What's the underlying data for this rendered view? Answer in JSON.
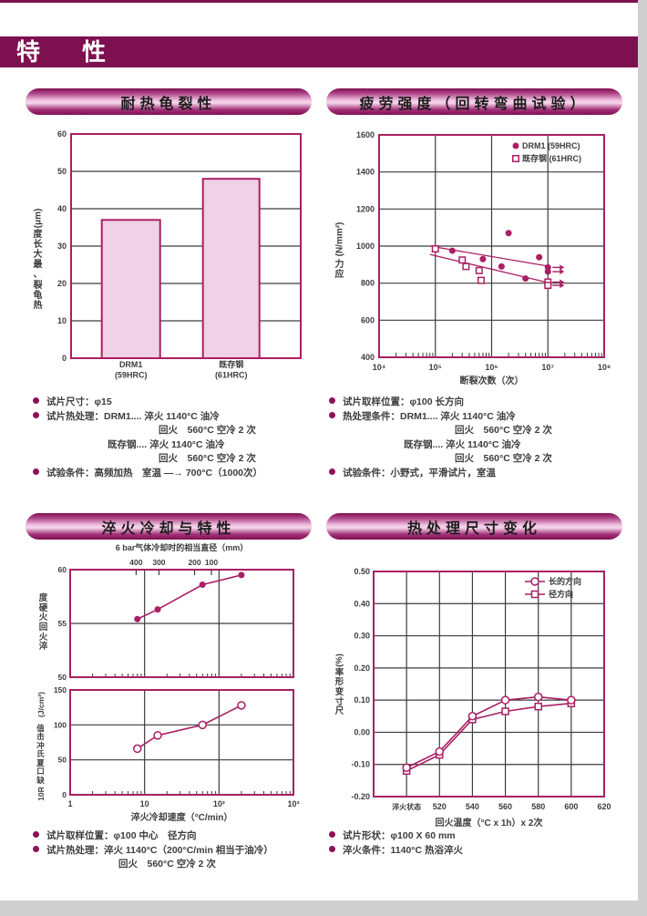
{
  "page_title": "特　性",
  "colors": {
    "header_bar": "#7d1150",
    "accent_line": "#aa1f63",
    "bar_fill": "#efd2e5",
    "grid": "#3c3c3c",
    "text": "#3d3d3d",
    "bullet": "#8d1156",
    "pill_highlight": "#f6d8ec"
  },
  "panels": [
    {
      "title": "耐热龟裂性",
      "notes": [
        {
          "bullet": true,
          "indent": 0,
          "text": "试片尺寸：φ15"
        },
        {
          "bullet": true,
          "indent": 0,
          "text": "试片热处理：DRM1.... 淬火 1140°C 油冷"
        },
        {
          "bullet": false,
          "indent": 123,
          "text": "回火　560°C 空冷 2 次"
        },
        {
          "bullet": false,
          "indent": 67,
          "text": "既存钢.... 淬火 1140°C 油冷"
        },
        {
          "bullet": false,
          "indent": 123,
          "text": "回火　560°C 空冷 2 次"
        },
        {
          "bullet": true,
          "indent": 0,
          "text": "试验条件：高频加热　室温 —→ 700°C（1000次）"
        }
      ]
    },
    {
      "title": "疲劳强度（回转弯曲试验）",
      "notes": [
        {
          "bullet": true,
          "indent": 0,
          "text": "试片取样位置：φ100 长方向"
        },
        {
          "bullet": true,
          "indent": 0,
          "text": "热处理条件：DRM1.... 淬火 1140°C 油冷"
        },
        {
          "bullet": false,
          "indent": 123,
          "text": "回火　560°C 空冷 2 次"
        },
        {
          "bullet": false,
          "indent": 67,
          "text": "既存钢.... 淬火 1140°C 油冷"
        },
        {
          "bullet": false,
          "indent": 123,
          "text": "回火　560°C 空冷 2 次"
        },
        {
          "bullet": true,
          "indent": 0,
          "text": "试验条件：小野式，平滑试片，室温"
        }
      ]
    },
    {
      "title": "淬火冷却与特性",
      "notes": [
        {
          "bullet": true,
          "indent": 0,
          "text": "试片取样位置：φ100 中心　径方向"
        },
        {
          "bullet": true,
          "indent": 0,
          "text": "试片热处理：淬火 1140°C（200°C/min 相当于油冷）"
        },
        {
          "bullet": false,
          "indent": 79,
          "text": "回火　560°C 空冷 2 次"
        }
      ]
    },
    {
      "title": "热处理尺寸变化",
      "notes": [
        {
          "bullet": true,
          "indent": 0,
          "text": "试片形状：φ100 X 60 mm"
        },
        {
          "bullet": true,
          "indent": 0,
          "text": "淬火条件：1140°C 热浴淬火"
        }
      ]
    }
  ],
  "chart_data": [
    {
      "type": "bar",
      "title": "耐热龟裂性",
      "categories": [
        "DRM1\n(59HRC)",
        "既存钢\n(61HRC)"
      ],
      "values": [
        37,
        48
      ],
      "ylabel": "热龟裂、最大长度(μm)",
      "ylim": [
        0,
        60
      ],
      "ytick_step": 10,
      "grid": true
    },
    {
      "type": "scatter",
      "title": "疲劳强度（回转弯曲试验）",
      "xlabel": "断裂次数（次）",
      "ylabel": "应力(N/mm²)",
      "xscale": "log",
      "xlim": [
        10000,
        100000000
      ],
      "xticks": [
        "10⁴",
        "10⁵",
        "10⁶",
        "10⁷",
        "10⁸"
      ],
      "ylim": [
        400,
        1600
      ],
      "ytick_step": 200,
      "legend_position": "top-right",
      "series": [
        {
          "name": "DRM1 (59HRC)",
          "marker": "filled-circle",
          "points": [
            [
              200000.0,
              975
            ],
            [
              700000.0,
              930
            ],
            [
              1500000.0,
              890
            ],
            [
              2000000.0,
              1070
            ],
            [
              4000000.0,
              825
            ],
            [
              7000000.0,
              940
            ]
          ],
          "runouts": [
            [
              10000000.0,
              885
            ],
            [
              10000000.0,
              862
            ]
          ]
        },
        {
          "name": "既存钢 (61HRC)",
          "marker": "open-square",
          "points": [
            [
              100000.0,
              985
            ],
            [
              300000.0,
              925
            ],
            [
              350000.0,
              890
            ],
            [
              600000.0,
              868
            ],
            [
              650000.0,
              815
            ]
          ],
          "runouts": [
            [
              10000000.0,
              806
            ],
            [
              10000000.0,
              788
            ]
          ]
        }
      ],
      "trend_lines": [
        [
          80000.0,
          1000,
          11000000.0,
          890
        ],
        [
          80000.0,
          955,
          11000000.0,
          800
        ]
      ]
    },
    {
      "type": "line-dual",
      "title": "淬火冷却与特性",
      "top_axis_label": "6 bar气体冷却时的相当直径（mm）",
      "top_axis_ticks": [
        {
          "label": "400",
          "rate": 7.7
        },
        {
          "label": "300",
          "rate": 15.6
        },
        {
          "label": "200",
          "rate": 47
        },
        {
          "label": "100",
          "rate": 79
        }
      ],
      "xlabel": "淬火冷却速度（°C/min）",
      "xscale": "log",
      "xlim": [
        1,
        1000
      ],
      "xticks": [
        "1",
        "10",
        "10²",
        "10³"
      ],
      "subplots": [
        {
          "ylabel": "淬火回火硬度",
          "ylim": [
            50,
            60
          ],
          "yticks": [
            50,
            55,
            60
          ],
          "marker": "filled-circle",
          "points": [
            [
              8,
              55.4
            ],
            [
              15,
              56.3
            ],
            [
              60,
              58.6
            ],
            [
              200,
              59.5
            ]
          ]
        },
        {
          "ylabel": "10R缺口夏氏冲击值(J/cm²)",
          "ylim": [
            0,
            150
          ],
          "yticks": [
            0,
            50,
            100,
            150
          ],
          "marker": "open-circle",
          "points": [
            [
              8,
              66
            ],
            [
              15,
              85
            ],
            [
              60,
              100
            ],
            [
              200,
              128
            ]
          ]
        }
      ]
    },
    {
      "type": "line",
      "title": "热处理尺寸变化",
      "xlabel": "回火温度（°C x 1h）x 2次",
      "ylabel": "尺寸变形率(%)",
      "categories": [
        "淬火状态",
        "520",
        "540",
        "560",
        "580",
        "600",
        "620"
      ],
      "ylim": [
        -0.2,
        0.5
      ],
      "ytick_step": 0.1,
      "legend_position": "top-right",
      "series": [
        {
          "name": "长的方向",
          "marker": "open-circle",
          "values": [
            -0.11,
            -0.06,
            0.05,
            0.1,
            0.11,
            0.1,
            null
          ]
        },
        {
          "name": "径方向",
          "marker": "open-square",
          "values": [
            -0.12,
            -0.07,
            0.04,
            0.065,
            0.08,
            0.09,
            null
          ]
        }
      ]
    }
  ]
}
